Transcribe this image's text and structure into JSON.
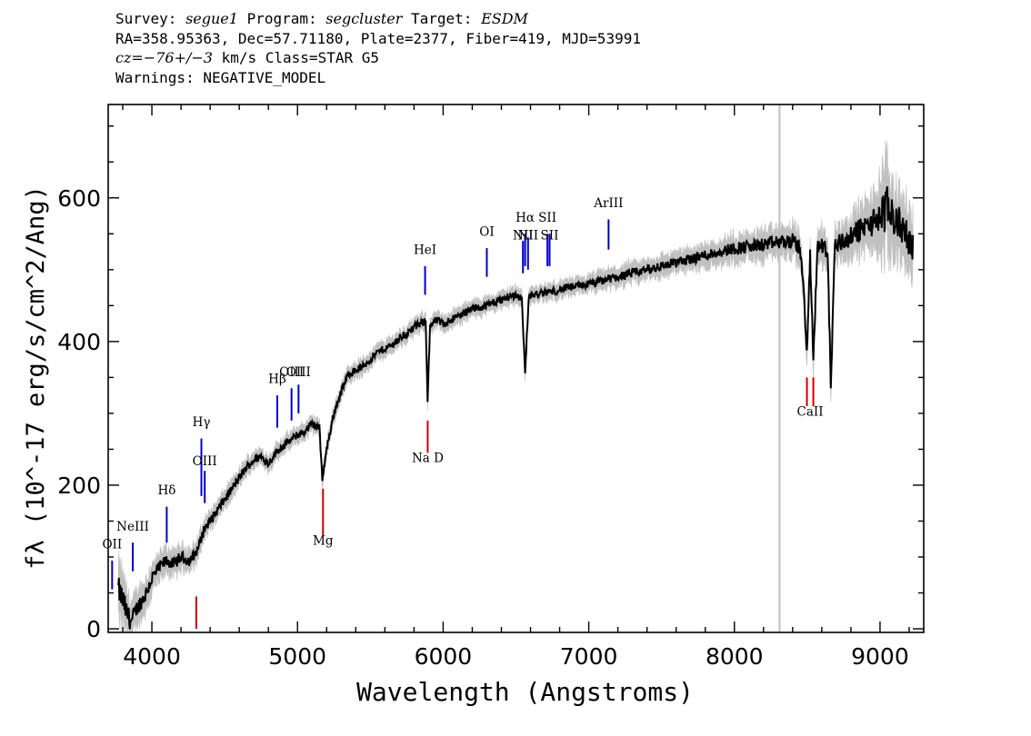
{
  "header": {
    "survey_label": "Survey:",
    "survey": "segue1",
    "program_label": "Program:",
    "program": "segcluster",
    "target_label": "Target:",
    "target": "ESDM",
    "line2": "RA=358.95363, Dec=57.71180, Plate=2377, Fiber=419, MJD=53991",
    "cz": "cz=−76+/−3",
    "cz_units": "km/s",
    "class": "Class=STAR G5",
    "warnings": "Warnings: NEGATIVE_MODEL"
  },
  "colors": {
    "spectrum": "#000000",
    "error_band": "#c0c0c0",
    "emission_line": "#0000cc",
    "absorption_line": "#cc0000",
    "marker_line": "#c0c0c0"
  },
  "chart_data": {
    "type": "line",
    "title": "",
    "xlabel": "Wavelength (Angstroms)",
    "ylabel": "fλ (10^-17 erg/s/cm^2/Ang)",
    "xlim": [
      3700,
      9300
    ],
    "ylim": [
      -5,
      730
    ],
    "x_ticks": [
      4000,
      5000,
      6000,
      7000,
      8000,
      9000
    ],
    "x_tick_labels": [
      "4000",
      "5000",
      "6000",
      "7000",
      "8000",
      "9000"
    ],
    "y_ticks": [
      0,
      200,
      400,
      600
    ],
    "y_tick_labels": [
      "0",
      "200",
      "400",
      "600"
    ],
    "vertical_marker": 8310,
    "series": [
      {
        "name": "flux",
        "x": [
          3770,
          3800,
          3830,
          3860,
          3900,
          3950,
          4000,
          4050,
          4100,
          4150,
          4200,
          4260,
          4300,
          4330,
          4360,
          4400,
          4450,
          4500,
          4550,
          4600,
          4650,
          4700,
          4750,
          4800,
          4850,
          4900,
          4950,
          5000,
          5050,
          5100,
          5150,
          5170,
          5200,
          5250,
          5300,
          5350,
          5400,
          5450,
          5500,
          5550,
          5600,
          5650,
          5700,
          5750,
          5800,
          5850,
          5880,
          5893,
          5910,
          5950,
          6000,
          6050,
          6100,
          6150,
          6200,
          6250,
          6300,
          6350,
          6400,
          6450,
          6500,
          6540,
          6563,
          6590,
          6650,
          6700,
          6750,
          6800,
          6850,
          6900,
          6950,
          7000,
          7050,
          7100,
          7150,
          7200,
          7300,
          7400,
          7500,
          7600,
          7700,
          7800,
          7900,
          8000,
          8100,
          8200,
          8300,
          8400,
          8450,
          8480,
          8498,
          8520,
          8542,
          8570,
          8600,
          8640,
          8662,
          8690,
          8750,
          8800,
          8850,
          8900,
          8950,
          9000,
          9050,
          9100,
          9150,
          9200,
          9230
        ],
        "values": [
          55,
          40,
          20,
          10,
          30,
          45,
          70,
          85,
          95,
          90,
          100,
          95,
          105,
          120,
          140,
          150,
          165,
          180,
          195,
          210,
          225,
          235,
          240,
          230,
          245,
          255,
          262,
          270,
          275,
          285,
          280,
          210,
          250,
          300,
          330,
          355,
          360,
          365,
          375,
          385,
          390,
          395,
          405,
          410,
          420,
          425,
          430,
          320,
          420,
          430,
          425,
          430,
          435,
          440,
          445,
          448,
          450,
          455,
          458,
          462,
          465,
          460,
          360,
          465,
          465,
          468,
          470,
          472,
          475,
          476,
          478,
          480,
          482,
          485,
          488,
          490,
          495,
          500,
          505,
          510,
          515,
          520,
          525,
          530,
          532,
          535,
          538,
          540,
          530,
          460,
          380,
          520,
          375,
          530,
          535,
          525,
          340,
          535,
          540,
          545,
          555,
          560,
          565,
          575,
          585,
          570,
          560,
          540,
          530
        ],
        "error": [
          40,
          40,
          35,
          30,
          25,
          25,
          22,
          20,
          20,
          18,
          18,
          18,
          16,
          16,
          15,
          15,
          14,
          14,
          14,
          13,
          13,
          13,
          12,
          12,
          12,
          12,
          12,
          12,
          12,
          12,
          12,
          12,
          12,
          12,
          12,
          12,
          12,
          12,
          12,
          12,
          12,
          12,
          12,
          12,
          12,
          12,
          12,
          12,
          12,
          12,
          12,
          12,
          12,
          12,
          12,
          12,
          12,
          12,
          12,
          12,
          12,
          12,
          12,
          12,
          12,
          12,
          12,
          12,
          12,
          12,
          12,
          12,
          14,
          14,
          14,
          14,
          15,
          15,
          16,
          16,
          16,
          18,
          18,
          20,
          20,
          22,
          22,
          24,
          24,
          24,
          24,
          25,
          25,
          25,
          26,
          26,
          28,
          28,
          30,
          32,
          34,
          36,
          40,
          60,
          70,
          55,
          50,
          45,
          45
        ]
      }
    ],
    "line_labels": [
      {
        "label": "OII",
        "x": 3727,
        "tip": 95,
        "base": 55,
        "color": "emission",
        "label_y": 112
      },
      {
        "label": "NeIII",
        "x": 3869,
        "tip": 120,
        "base": 80,
        "color": "emission",
        "label_y": 137
      },
      {
        "label": "Hδ",
        "x": 4102,
        "tip": 170,
        "base": 120,
        "color": "emission",
        "label_y": 187
      },
      {
        "label": "Hγ",
        "x": 4340,
        "tip": 265,
        "base": 185,
        "color": "emission",
        "label_y": 282
      },
      {
        "label": "OIII",
        "x": 4363,
        "tip": 220,
        "base": 175,
        "color": "emission",
        "label_y": 228
      },
      {
        "label": "Hβ",
        "x": 4861,
        "tip": 325,
        "base": 280,
        "color": "emission",
        "label_y": 342
      },
      {
        "label": "OIII",
        "x": 4959,
        "tip": 335,
        "base": 290,
        "color": "emission",
        "label_y": 352
      },
      {
        "label": "OIII",
        "x": 5007,
        "tip": 340,
        "base": 300,
        "color": "emission",
        "label_y": 352
      },
      {
        "label": "HeI",
        "x": 5876,
        "tip": 505,
        "base": 465,
        "color": "emission",
        "label_y": 522
      },
      {
        "label": "OI",
        "x": 6300,
        "tip": 530,
        "base": 490,
        "color": "emission",
        "label_y": 547
      },
      {
        "label": "NII",
        "x": 6548,
        "tip": 540,
        "base": 495,
        "color": "emission",
        "label_y": 542
      },
      {
        "label": "Hα",
        "x": 6563,
        "tip": 550,
        "base": 505,
        "color": "emission",
        "label_y": 567
      },
      {
        "label": "NII",
        "x": 6583,
        "tip": 545,
        "base": 500,
        "color": "emission",
        "label_y": 542
      },
      {
        "label": "SII",
        "x": 6716,
        "tip": 550,
        "base": 505,
        "color": "emission",
        "label_y": 567
      },
      {
        "label": "SII",
        "x": 6731,
        "tip": 550,
        "base": 505,
        "color": "emission",
        "label_y": 542
      },
      {
        "label": "ArIII",
        "x": 7136,
        "tip": 570,
        "base": 528,
        "color": "emission",
        "label_y": 587
      },
      {
        "label": "Mg",
        "x": 5175,
        "tip": 195,
        "base": 130,
        "color": "absorption",
        "label_y": 117
      },
      {
        "label": "Na D",
        "x": 5894,
        "tip": 290,
        "base": 245,
        "color": "absorption",
        "label_y": 232
      },
      {
        "label": "CaII",
        "x": 8498,
        "tip": 350,
        "base": 310,
        "color": "absorption",
        "label_y": 297
      },
      {
        "label": "CaII",
        "x": 8542,
        "tip": 350,
        "base": 310,
        "color": "absorption",
        "label_y": 297
      },
      {
        "label": "CaII",
        "x": 8662,
        "tip": 385,
        "base": 340,
        "color": "absorption",
        "label_y": 297
      },
      {
        "label": "",
        "x": 4305,
        "tip": 45,
        "base": 0,
        "color": "absorption",
        "label_y": 0
      }
    ]
  }
}
